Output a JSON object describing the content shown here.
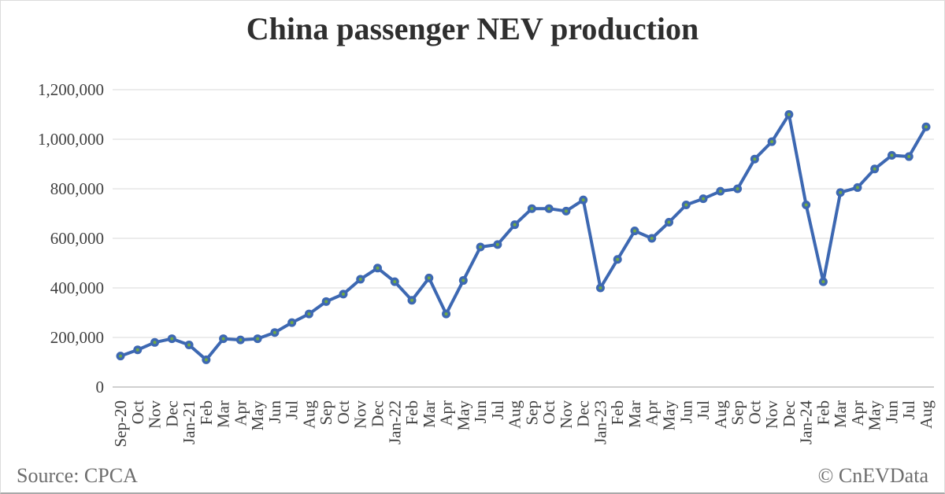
{
  "title": "China passenger NEV production",
  "footer": {
    "source": "Source: CPCA",
    "credit": "© CnEVData"
  },
  "colors": {
    "line": "#3D68B2",
    "marker": "#3D68B2",
    "marker_center": "#70A946",
    "gridline": "#D9D9D9",
    "axis_line": "#BFBFBF",
    "title_text": "#2F2F2F",
    "tick_text": "#404040",
    "footer_text": "#6D6D6D",
    "background": "#FFFFFF"
  },
  "chart_data": {
    "type": "line",
    "title": "China passenger NEV production",
    "xlabel": "",
    "ylabel": "",
    "ylim": [
      0,
      1200000
    ],
    "ytick_interval": 200000,
    "ytick_labels": [
      "0",
      "200,000",
      "400,000",
      "600,000",
      "800,000",
      "1,000,000",
      "1,200,000"
    ],
    "grid": true,
    "legend": false,
    "categories": [
      "Sep-20",
      "Oct",
      "Nov",
      "Dec",
      "Jan-21",
      "Feb",
      "Mar",
      "Apr",
      "May",
      "Jun",
      "Jul",
      "Aug",
      "Sep",
      "Oct",
      "Nov",
      "Dec",
      "Jan-22",
      "Feb",
      "Mar",
      "Apr",
      "May",
      "Jun",
      "Jul",
      "Aug",
      "Sep",
      "Oct",
      "Nov",
      "Dec",
      "Jan-23",
      "Feb",
      "Mar",
      "Apr",
      "May",
      "Jun",
      "Jul",
      "Aug",
      "Sep",
      "Oct",
      "Nov",
      "Dec",
      "Jan-24",
      "Feb",
      "Mar",
      "Apr",
      "May",
      "Jun",
      "Jul",
      "Aug"
    ],
    "values": [
      125000,
      150000,
      180000,
      195000,
      170000,
      110000,
      195000,
      190000,
      195000,
      220000,
      260000,
      295000,
      345000,
      375000,
      435000,
      480000,
      425000,
      350000,
      440000,
      295000,
      430000,
      565000,
      575000,
      655000,
      720000,
      720000,
      710000,
      755000,
      400000,
      515000,
      630000,
      600000,
      665000,
      735000,
      760000,
      790000,
      800000,
      920000,
      990000,
      1100000,
      735000,
      425000,
      785000,
      805000,
      880000,
      935000,
      930000,
      1050000
    ]
  }
}
